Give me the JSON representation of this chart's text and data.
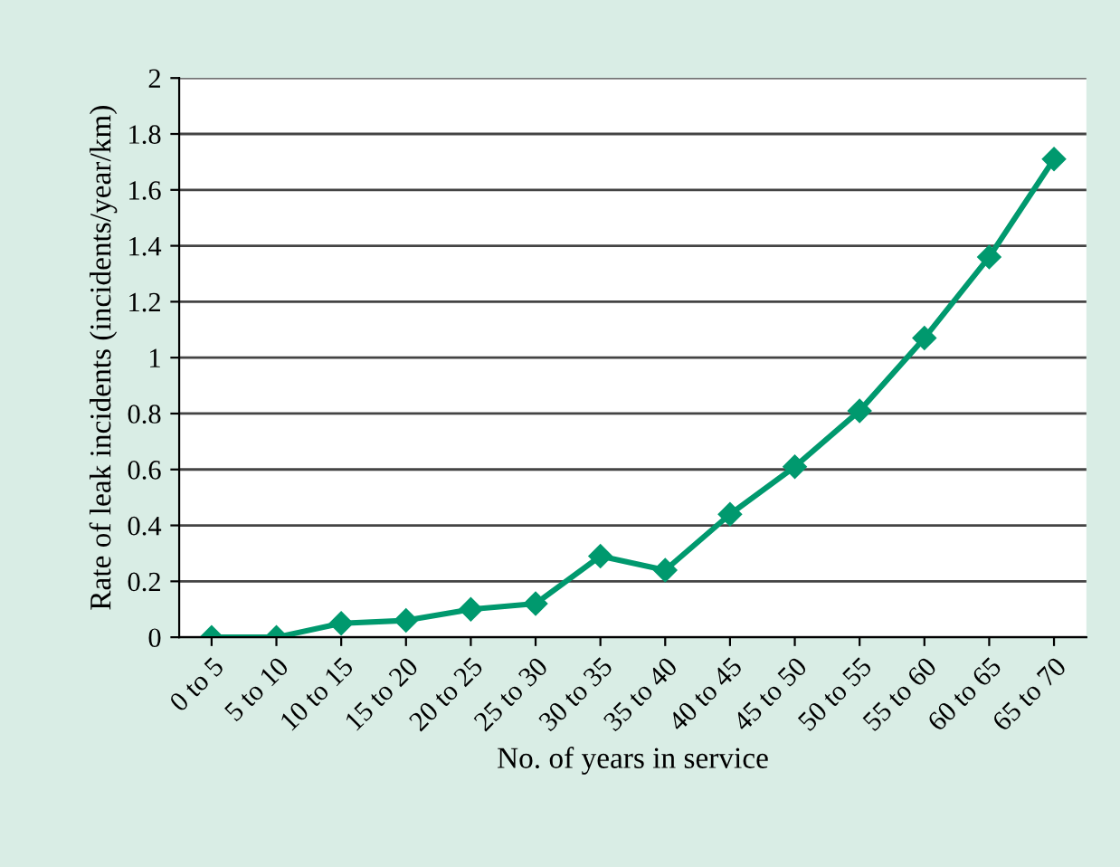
{
  "chart_data": {
    "type": "line",
    "xlabel": "No. of years in service",
    "ylabel": "Rate of leak incidents (incidents/year/km)",
    "categories": [
      "0 to 5",
      "5 to 10",
      "10 to 15",
      "15 to 20",
      "20 to 25",
      "25 to 30",
      "30 to 35",
      "35 to 40",
      "40 to 45",
      "45 to 50",
      "50 to 55",
      "55 to 60",
      "60 to 65",
      "65 to 70"
    ],
    "series": [
      {
        "color": "#00996e",
        "values": [
          0,
          0,
          0.05,
          0.06,
          0.1,
          0.12,
          0.29,
          0.24,
          0.44,
          0.61,
          0.81,
          1.07,
          1.36,
          1.71
        ]
      }
    ],
    "ylim": [
      0,
      2
    ],
    "yticks": [
      0,
      0.2,
      0.4,
      0.6,
      0.8,
      1,
      1.2,
      1.4,
      1.6,
      1.8,
      2
    ],
    "grid": "y",
    "marker": "diamond",
    "line_style": "solid",
    "legend": false
  }
}
